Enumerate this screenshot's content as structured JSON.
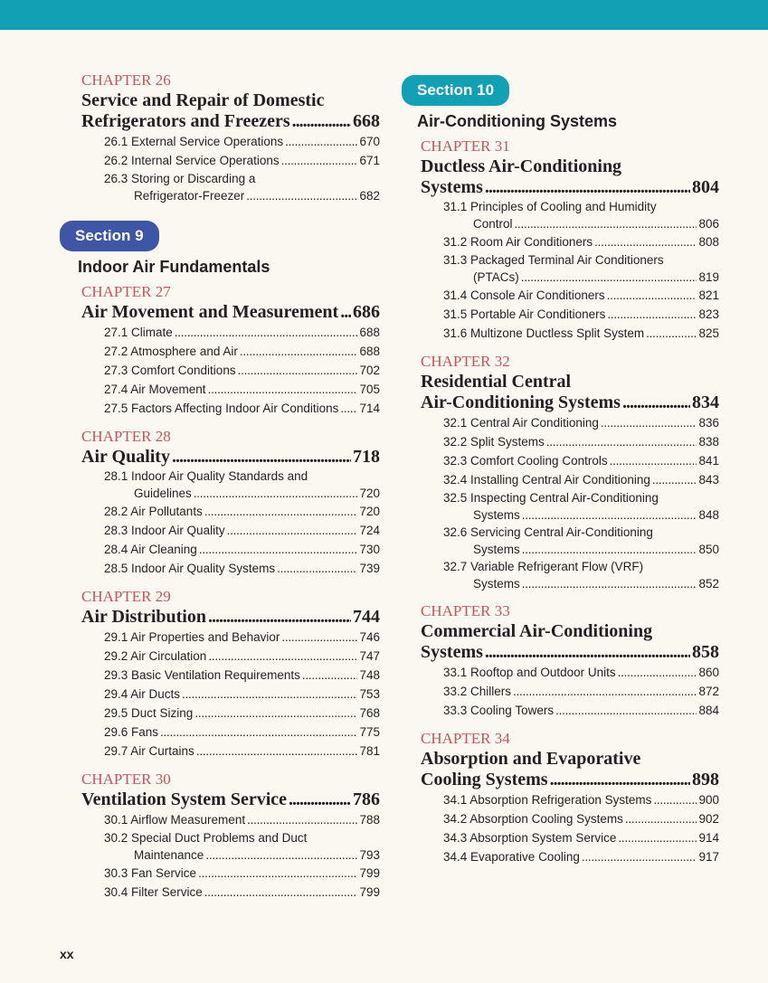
{
  "colors": {
    "top_bar": "#12a0b4",
    "section9": "#3f55a6",
    "section10": "#12a0b4",
    "chapter_label": "#c4575c"
  },
  "left": {
    "chapters_before": [
      {
        "label": "CHAPTER 26",
        "title1": "Service and Repair of Domestic",
        "title2": "Refrigerators and Freezers",
        "page": "668",
        "subs": [
          {
            "t": "26.1 External Service Operations",
            "p": "670"
          },
          {
            "t": "26.2 Internal Service Operations",
            "p": "671"
          },
          {
            "t": "26.3 Storing or Discarding a",
            "c": "Refrigerator-Freezer",
            "p": "682"
          }
        ]
      }
    ],
    "section": {
      "badge": "Section 9",
      "title": "Indoor Air Fundamentals"
    },
    "chapters": [
      {
        "label": "CHAPTER 27",
        "title2": "Air Movement and Measurement",
        "page": "686",
        "subs": [
          {
            "t": "27.1 Climate",
            "p": "688"
          },
          {
            "t": "27.2 Atmosphere and Air",
            "p": "688"
          },
          {
            "t": "27.3 Comfort Conditions",
            "p": "702"
          },
          {
            "t": "27.4 Air Movement",
            "p": "705"
          },
          {
            "t": "27.5 Factors Affecting Indoor Air Conditions",
            "p": "714"
          }
        ]
      },
      {
        "label": "CHAPTER 28",
        "title2": "Air Quality",
        "page": "718",
        "subs": [
          {
            "t": "28.1 Indoor Air Quality Standards and",
            "c": "Guidelines",
            "p": "720"
          },
          {
            "t": "28.2 Air Pollutants",
            "p": "720"
          },
          {
            "t": "28.3 Indoor Air Quality",
            "p": "724"
          },
          {
            "t": "28.4 Air Cleaning",
            "p": "730"
          },
          {
            "t": "28.5 Indoor Air Quality Systems",
            "p": "739"
          }
        ]
      },
      {
        "label": "CHAPTER 29",
        "title2": "Air Distribution",
        "page": "744",
        "subs": [
          {
            "t": "29.1 Air Properties and Behavior",
            "p": "746"
          },
          {
            "t": "29.2 Air Circulation",
            "p": "747"
          },
          {
            "t": "29.3 Basic Ventilation Requirements",
            "p": "748"
          },
          {
            "t": "29.4 Air Ducts",
            "p": "753"
          },
          {
            "t": "29.5 Duct Sizing",
            "p": "768"
          },
          {
            "t": "29.6 Fans",
            "p": "775"
          },
          {
            "t": "29.7 Air Curtains",
            "p": "781"
          }
        ]
      },
      {
        "label": "CHAPTER 30",
        "title2": "Ventilation System Service",
        "page": "786",
        "subs": [
          {
            "t": "30.1 Airflow Measurement",
            "p": "788"
          },
          {
            "t": "30.2 Special Duct Problems and Duct",
            "c": "Maintenance",
            "p": "793"
          },
          {
            "t": "30.3 Fan Service",
            "p": "799"
          },
          {
            "t": "30.4 Filter Service",
            "p": "799"
          }
        ]
      }
    ]
  },
  "right": {
    "section": {
      "badge": "Section 10",
      "title": "Air-Conditioning Systems"
    },
    "chapters": [
      {
        "label": "CHAPTER 31",
        "title1": "Ductless Air-Conditioning",
        "title2": "Systems",
        "page": "804",
        "subs": [
          {
            "t": "31.1 Principles of Cooling and Humidity",
            "c": "Control",
            "p": "806"
          },
          {
            "t": "31.2 Room Air Conditioners",
            "p": "808"
          },
          {
            "t": "31.3 Packaged Terminal Air Conditioners",
            "c": "(PTACs)",
            "p": "819"
          },
          {
            "t": "31.4 Console Air Conditioners",
            "p": "821"
          },
          {
            "t": "31.5 Portable Air Conditioners",
            "p": "823"
          },
          {
            "t": "31.6 Multizone Ductless Split System",
            "p": "825"
          }
        ]
      },
      {
        "label": "CHAPTER 32",
        "title1": "Residential Central",
        "title2": "Air-Conditioning Systems",
        "page": "834",
        "subs": [
          {
            "t": "32.1 Central Air Conditioning",
            "p": "836"
          },
          {
            "t": "32.2 Split Systems",
            "p": "838"
          },
          {
            "t": "32.3 Comfort Cooling Controls",
            "p": "841"
          },
          {
            "t": "32.4 Installing Central Air Conditioning",
            "p": "843"
          },
          {
            "t": "32.5 Inspecting Central Air-Conditioning",
            "c": "Systems",
            "p": "848"
          },
          {
            "t": "32.6 Servicing Central Air-Conditioning",
            "c": "Systems",
            "p": "850"
          },
          {
            "t": "32.7 Variable Refrigerant Flow (VRF)",
            "c": "Systems",
            "p": "852"
          }
        ]
      },
      {
        "label": "CHAPTER 33",
        "title1": "Commercial Air-Conditioning",
        "title2": "Systems",
        "page": "858",
        "subs": [
          {
            "t": "33.1 Rooftop and Outdoor Units",
            "p": "860"
          },
          {
            "t": "33.2 Chillers",
            "p": "872"
          },
          {
            "t": "33.3 Cooling Towers",
            "p": "884"
          }
        ]
      },
      {
        "label": "CHAPTER 34",
        "title1": "Absorption and Evaporative",
        "title2": "Cooling Systems",
        "page": "898",
        "subs": [
          {
            "t": "34.1 Absorption Refrigeration Systems",
            "p": "900"
          },
          {
            "t": "34.2 Absorption Cooling Systems",
            "p": "902"
          },
          {
            "t": "34.3 Absorption System Service",
            "p": "914"
          },
          {
            "t": "34.4 Evaporative Cooling",
            "p": "917"
          }
        ]
      }
    ]
  },
  "folio": "xx"
}
